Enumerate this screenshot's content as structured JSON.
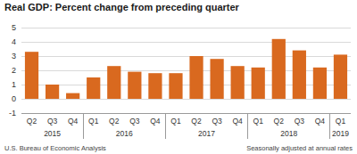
{
  "chart_data": {
    "type": "bar",
    "title": "Real GDP:  Percent change from preceding quarter",
    "categories": [
      "Q2",
      "Q3",
      "Q4",
      "Q1",
      "Q2",
      "Q3",
      "Q4",
      "Q1",
      "Q2",
      "Q3",
      "Q4",
      "Q1",
      "Q2",
      "Q3",
      "Q4",
      "Q1"
    ],
    "year_labels": [
      "2015",
      "2015",
      "2015",
      "2016",
      "2016",
      "2016",
      "2016",
      "2017",
      "2017",
      "2017",
      "2017",
      "2018",
      "2018",
      "2018",
      "2018",
      "2019"
    ],
    "values": [
      3.3,
      1.0,
      0.4,
      1.5,
      2.3,
      1.9,
      1.8,
      1.8,
      3.0,
      2.8,
      2.3,
      2.2,
      4.2,
      3.4,
      2.2,
      3.1
    ],
    "color": "#d9691f",
    "ylim": [
      -1,
      5
    ],
    "yticks": [
      -1,
      0,
      1,
      2,
      3,
      4,
      5
    ],
    "grid": true,
    "source": "U.S. Bureau of Economic Analysis",
    "note": "Seasonally adjusted at annual rates"
  }
}
